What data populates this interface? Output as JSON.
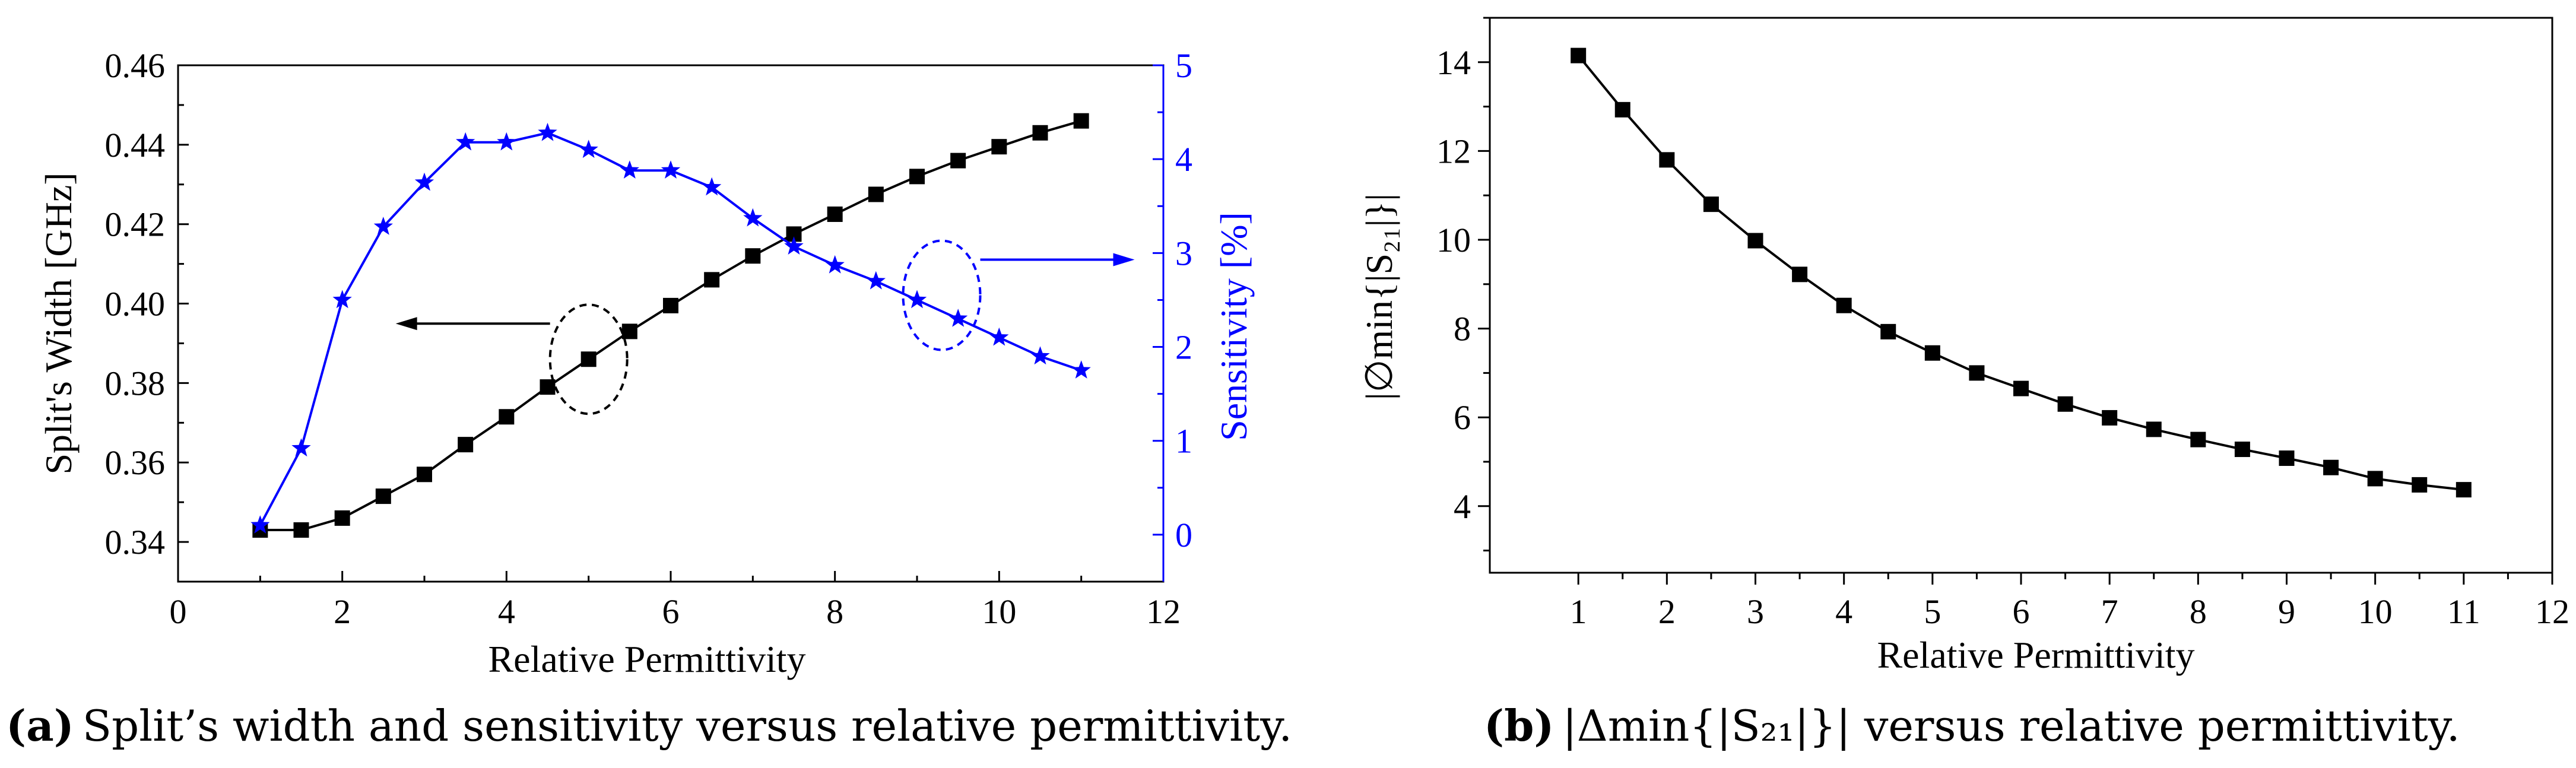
{
  "chart_data": [
    {
      "type": "line",
      "panel": "a",
      "xlabel": "Relative Permittivity",
      "ylabel": "Split's Width [GHz]",
      "y2label": "Sensitivity [%]",
      "xlim": [
        0,
        12
      ],
      "ylim": [
        0.33,
        0.46
      ],
      "y2lim": [
        -0.5,
        5
      ],
      "xticks": [
        "0",
        "2",
        "4",
        "6",
        "8",
        "10",
        "12"
      ],
      "yticks": [
        "0.34",
        "0.36",
        "0.38",
        "0.40",
        "0.42",
        "0.44",
        "0.46"
      ],
      "y2ticks": [
        "0",
        "1",
        "2",
        "3",
        "4",
        "5"
      ],
      "grid": false,
      "series": [
        {
          "name": "Split's Width",
          "axis": "left",
          "color": "#000000",
          "marker": "square",
          "x": [
            1,
            1.5,
            2,
            2.5,
            3,
            3.5,
            4,
            4.5,
            5,
            5.5,
            6,
            6.5,
            7,
            7.5,
            8,
            8.5,
            9,
            9.5,
            10,
            10.5,
            11
          ],
          "values": [
            0.343,
            0.343,
            0.346,
            0.3515,
            0.357,
            0.3645,
            0.3715,
            0.379,
            0.386,
            0.393,
            0.3995,
            0.406,
            0.412,
            0.4175,
            0.4225,
            0.4275,
            0.432,
            0.436,
            0.4395,
            0.443,
            0.446
          ]
        },
        {
          "name": "Sensitivity",
          "axis": "right",
          "color": "#0000ff",
          "marker": "star",
          "x": [
            1,
            1.5,
            2,
            2.5,
            3,
            3.5,
            4,
            4.5,
            5,
            5.5,
            6,
            6.5,
            7,
            7.5,
            8,
            8.5,
            9,
            9.5,
            10,
            10.5,
            11
          ],
          "values": [
            0.1,
            0.92,
            2.5,
            3.28,
            3.75,
            4.18,
            4.18,
            4.28,
            4.1,
            3.88,
            3.88,
            3.7,
            3.37,
            3.07,
            2.87,
            2.7,
            2.5,
            2.3,
            2.1,
            1.9,
            1.75
          ]
        }
      ],
      "annotations": [
        {
          "type": "ellipse",
          "target": "Split's Width",
          "center": [
            5,
            0.386
          ],
          "arrow": "left",
          "color": "#000000"
        },
        {
          "type": "ellipse",
          "target": "Sensitivity",
          "center": [
            9.3,
            2.55
          ],
          "arrow": "right",
          "color": "#0000ff"
        }
      ]
    },
    {
      "type": "line",
      "panel": "b",
      "xlabel": "Relative Permittivity",
      "ylabel": "|∅min{|S₂₁|}|",
      "xlim": [
        0,
        12
      ],
      "ylim": [
        2.5,
        15
      ],
      "xticks": [
        "1",
        "2",
        "3",
        "4",
        "5",
        "6",
        "7",
        "8",
        "9",
        "10",
        "11",
        "12"
      ],
      "yticks": [
        "4",
        "6",
        "8",
        "10",
        "12",
        "14"
      ],
      "grid": false,
      "series": [
        {
          "name": "|Δmin{|S21|}|",
          "color": "#000000",
          "marker": "square",
          "x": [
            1,
            1.5,
            2,
            2.5,
            3,
            3.5,
            4,
            4.5,
            5,
            5.5,
            6,
            6.5,
            7,
            7.5,
            8,
            8.5,
            9,
            9.5,
            10,
            10.5,
            11
          ],
          "values": [
            14.15,
            12.93,
            11.8,
            10.8,
            9.98,
            9.22,
            8.52,
            7.93,
            7.45,
            7.0,
            6.65,
            6.3,
            5.99,
            5.73,
            5.5,
            5.28,
            5.08,
            4.87,
            4.62,
            4.48,
            4.37
          ]
        }
      ]
    }
  ],
  "captions": {
    "a": {
      "tag": "(a)",
      "text": "Split’s width and sensitivity versus relative permittivity."
    },
    "b": {
      "tag": "(b)",
      "text": "|Δmin{|S₂₁|}| versus relative permittivity."
    }
  }
}
